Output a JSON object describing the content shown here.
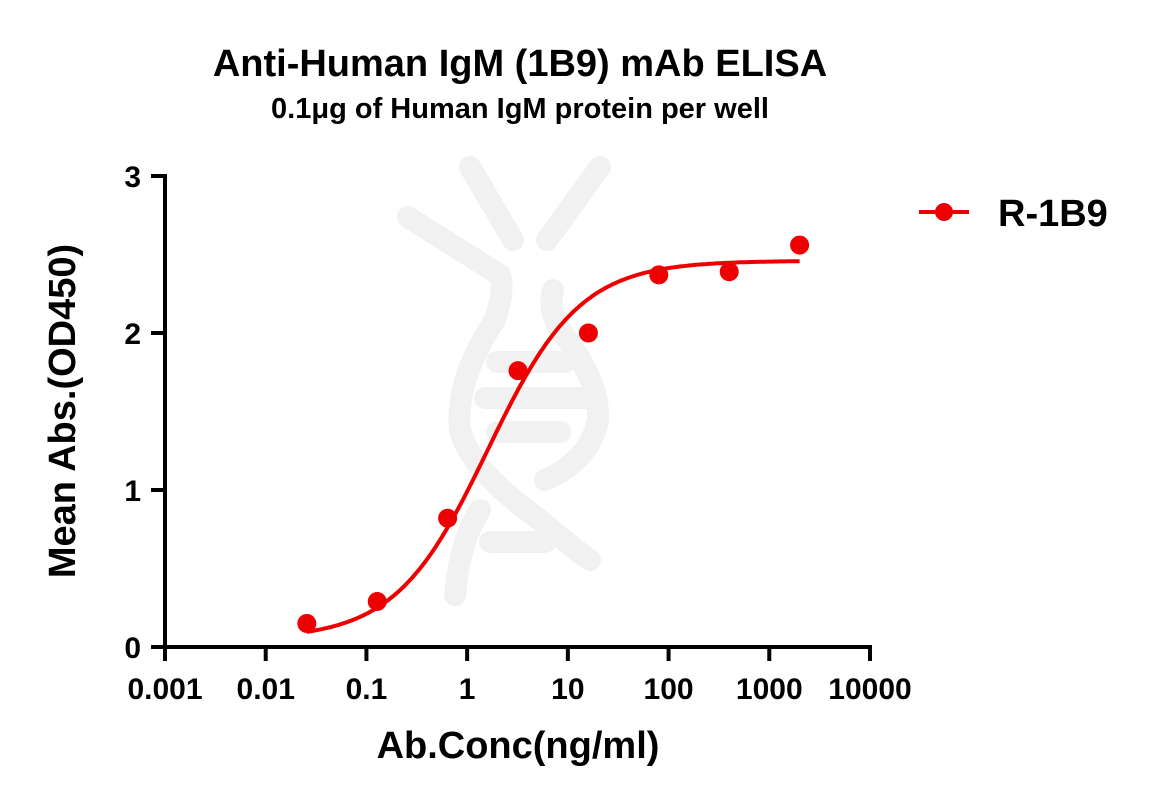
{
  "chart_data": {
    "type": "line",
    "title": "Anti-Human IgM (1B9) mAb ELISA",
    "subtitle": "0.1μg of Human IgM protein per well",
    "xlabel": "Ab.Conc(ng/ml)",
    "ylabel": "Mean Abs.(OD450)",
    "xscale": "log",
    "xlim": [
      0.001,
      10000
    ],
    "ylim": [
      0,
      3
    ],
    "x_ticks": [
      "0.001",
      "0.01",
      "0.1",
      "1",
      "10",
      "100",
      "1000",
      "10000"
    ],
    "y_ticks": [
      "0",
      "1",
      "2",
      "3"
    ],
    "grid": false,
    "legend_position": "right-top",
    "series": [
      {
        "name": "R-1B9",
        "color": "#ee0000",
        "marker": "circle",
        "x": [
          0.0256,
          0.128,
          0.64,
          3.2,
          16,
          80,
          400,
          2000
        ],
        "values": [
          0.15,
          0.29,
          0.82,
          1.76,
          2.0,
          2.37,
          2.39,
          2.56
        ],
        "fit": {
          "model": "4PL sigmoid",
          "bottom": 0.05,
          "top": 2.46,
          "ec50": 1.6,
          "hill": 0.95
        }
      }
    ],
    "annotations": [
      "faint grey DNA/antibody watermark behind plot"
    ]
  },
  "colors": {
    "series": "#ee0000",
    "axis": "#000000",
    "watermark": "#f0f0f0"
  }
}
